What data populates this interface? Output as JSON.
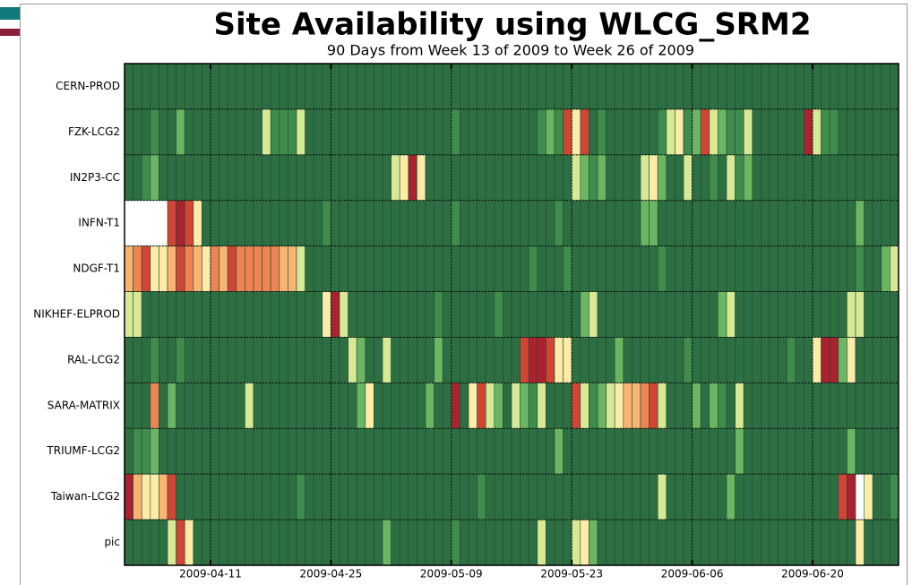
{
  "chart_data": {
    "type": "heatmap",
    "title": "Site Availability using WLCG_SRM2",
    "subtitle": "90 Days from Week 13 of 2009 to Week 26 of 2009",
    "categories": [
      "CERN-PROD",
      "FZK-LCG2",
      "IN2P3-CC",
      "INFN-T1",
      "NDGF-T1",
      "NIKHEF-ELPROD",
      "RAL-LCG2",
      "SARA-MATRIX",
      "TRIUMF-LCG2",
      "Taiwan-LCG2",
      "pic"
    ],
    "x": [
      0,
      1,
      2,
      3,
      4,
      5,
      6,
      7,
      8,
      9,
      10,
      11,
      12,
      13,
      14,
      15,
      16,
      17,
      18,
      19,
      20,
      21,
      22,
      23,
      24,
      25,
      26,
      27,
      28,
      29,
      30,
      31,
      32,
      33,
      34,
      35,
      36,
      37,
      38,
      39,
      40,
      41,
      42,
      43,
      44,
      45,
      46,
      47,
      48,
      49,
      50,
      51,
      52,
      53,
      54,
      55,
      56,
      57,
      58,
      59,
      60,
      61,
      62,
      63,
      64,
      65,
      66,
      67,
      68,
      69,
      70,
      71,
      72,
      73,
      74,
      75,
      76,
      77,
      78,
      79,
      80,
      81,
      82,
      83,
      84,
      85,
      86,
      87,
      88,
      89
    ],
    "xlim": [
      0,
      90
    ],
    "xticks": [
      {
        "value": 10,
        "label": "2009-04-11"
      },
      {
        "value": 24,
        "label": "2009-04-25"
      },
      {
        "value": 38,
        "label": "2009-05-09"
      },
      {
        "value": 52,
        "label": "2009-05-23"
      },
      {
        "value": 66,
        "label": "2009-06-06"
      },
      {
        "value": 80,
        "label": "2009-06-20"
      }
    ],
    "grid": true,
    "colorscale": [
      {
        "value": 15,
        "color": "#a8222f"
      },
      {
        "value": 30,
        "color": "#d04535"
      },
      {
        "value": 45,
        "color": "#ee8454"
      },
      {
        "value": 55,
        "color": "#f8b572"
      },
      {
        "value": 65,
        "color": "#fdeba8"
      },
      {
        "value": 75,
        "color": "#d8e996"
      },
      {
        "value": 88,
        "color": "#6cb563"
      },
      {
        "value": 95,
        "color": "#3f8c4c"
      },
      {
        "value": 100,
        "color": "#2e6e43"
      }
    ],
    "values": [
      [
        100,
        100,
        100,
        100,
        100,
        100,
        100,
        100,
        100,
        100,
        100,
        100,
        100,
        100,
        100,
        100,
        100,
        100,
        100,
        100,
        100,
        100,
        100,
        100,
        100,
        100,
        100,
        100,
        100,
        100,
        100,
        100,
        100,
        100,
        100,
        100,
        100,
        100,
        100,
        100,
        100,
        100,
        100,
        100,
        100,
        100,
        100,
        100,
        100,
        100,
        100,
        100,
        100,
        100,
        100,
        100,
        100,
        100,
        100,
        100,
        100,
        100,
        100,
        100,
        100,
        100,
        100,
        100,
        100,
        100,
        100,
        100,
        100,
        100,
        100,
        100,
        100,
        100,
        100,
        100,
        100,
        100,
        100,
        100,
        100,
        100,
        100,
        100,
        100,
        100
      ],
      [
        100,
        100,
        100,
        95,
        100,
        100,
        88,
        100,
        100,
        100,
        100,
        100,
        100,
        100,
        100,
        100,
        75,
        95,
        95,
        95,
        75,
        100,
        100,
        100,
        100,
        100,
        100,
        100,
        100,
        100,
        100,
        100,
        100,
        100,
        100,
        100,
        100,
        100,
        95,
        100,
        100,
        100,
        100,
        100,
        100,
        100,
        100,
        100,
        95,
        88,
        95,
        30,
        65,
        30,
        100,
        95,
        100,
        100,
        100,
        100,
        100,
        100,
        95,
        75,
        65,
        95,
        88,
        30,
        75,
        88,
        95,
        95,
        75,
        100,
        100,
        100,
        100,
        100,
        100,
        15,
        75,
        95,
        95,
        100,
        100,
        100,
        100,
        100,
        100,
        100
      ],
      [
        100,
        100,
        95,
        88,
        100,
        100,
        100,
        100,
        100,
        100,
        100,
        100,
        100,
        100,
        100,
        100,
        100,
        100,
        100,
        100,
        100,
        100,
        100,
        100,
        100,
        100,
        100,
        100,
        100,
        100,
        100,
        75,
        65,
        15,
        65,
        100,
        100,
        100,
        100,
        100,
        100,
        100,
        100,
        100,
        100,
        100,
        100,
        100,
        100,
        100,
        100,
        100,
        75,
        88,
        95,
        88,
        100,
        100,
        100,
        100,
        75,
        65,
        88,
        100,
        100,
        75,
        100,
        100,
        95,
        100,
        75,
        95,
        88,
        100,
        100,
        100,
        100,
        100,
        100,
        100,
        100,
        100,
        100,
        100,
        100,
        100,
        100,
        100,
        100,
        100
      ],
      [
        null,
        null,
        null,
        null,
        null,
        30,
        15,
        30,
        65,
        100,
        100,
        100,
        100,
        100,
        100,
        100,
        100,
        100,
        100,
        100,
        100,
        100,
        100,
        95,
        100,
        100,
        100,
        100,
        100,
        100,
        100,
        100,
        100,
        100,
        100,
        100,
        100,
        100,
        95,
        100,
        100,
        100,
        100,
        100,
        100,
        100,
        100,
        100,
        100,
        100,
        95,
        100,
        100,
        100,
        100,
        100,
        100,
        100,
        100,
        100,
        88,
        88,
        100,
        100,
        100,
        100,
        100,
        100,
        100,
        100,
        100,
        100,
        100,
        100,
        100,
        100,
        100,
        100,
        100,
        100,
        100,
        100,
        100,
        100,
        100,
        88,
        100,
        100,
        100,
        100
      ],
      [
        55,
        45,
        30,
        65,
        65,
        55,
        30,
        45,
        55,
        65,
        45,
        55,
        30,
        45,
        45,
        45,
        45,
        45,
        55,
        55,
        75,
        100,
        100,
        100,
        100,
        100,
        100,
        100,
        100,
        100,
        100,
        100,
        100,
        100,
        100,
        100,
        100,
        100,
        100,
        100,
        100,
        100,
        100,
        100,
        100,
        100,
        100,
        95,
        100,
        100,
        100,
        95,
        100,
        100,
        100,
        100,
        100,
        100,
        100,
        100,
        100,
        100,
        95,
        100,
        100,
        100,
        100,
        100,
        100,
        100,
        100,
        100,
        100,
        100,
        100,
        100,
        100,
        100,
        100,
        100,
        100,
        100,
        100,
        100,
        100,
        95,
        100,
        100,
        88,
        75
      ],
      [
        75,
        75,
        100,
        100,
        100,
        100,
        100,
        100,
        100,
        100,
        100,
        100,
        100,
        100,
        100,
        100,
        100,
        100,
        100,
        100,
        100,
        100,
        100,
        65,
        15,
        75,
        100,
        100,
        100,
        100,
        100,
        100,
        100,
        100,
        100,
        100,
        95,
        100,
        100,
        100,
        100,
        100,
        100,
        95,
        100,
        100,
        100,
        100,
        100,
        100,
        100,
        100,
        100,
        88,
        75,
        100,
        100,
        100,
        100,
        100,
        100,
        100,
        100,
        100,
        100,
        100,
        100,
        100,
        100,
        88,
        75,
        100,
        100,
        100,
        100,
        100,
        100,
        100,
        100,
        100,
        100,
        100,
        100,
        100,
        75,
        75,
        100,
        100,
        100,
        100
      ],
      [
        100,
        100,
        100,
        95,
        100,
        100,
        95,
        100,
        100,
        100,
        100,
        100,
        100,
        100,
        100,
        100,
        100,
        100,
        100,
        100,
        100,
        100,
        100,
        100,
        100,
        100,
        75,
        88,
        100,
        100,
        75,
        100,
        100,
        100,
        100,
        100,
        88,
        100,
        100,
        100,
        100,
        100,
        100,
        100,
        100,
        100,
        30,
        15,
        15,
        30,
        65,
        65,
        100,
        100,
        100,
        100,
        100,
        88,
        100,
        100,
        100,
        100,
        100,
        100,
        100,
        95,
        100,
        100,
        100,
        100,
        100,
        100,
        100,
        100,
        100,
        100,
        100,
        95,
        100,
        100,
        65,
        15,
        15,
        88,
        65,
        100,
        100,
        100,
        100,
        100
      ],
      [
        100,
        100,
        100,
        45,
        100,
        88,
        100,
        100,
        100,
        100,
        100,
        100,
        100,
        100,
        75,
        100,
        100,
        100,
        100,
        100,
        100,
        100,
        100,
        100,
        100,
        100,
        100,
        88,
        65,
        100,
        100,
        100,
        100,
        100,
        100,
        88,
        100,
        100,
        15,
        100,
        65,
        30,
        75,
        88,
        100,
        75,
        88,
        95,
        75,
        100,
        100,
        100,
        30,
        75,
        95,
        88,
        75,
        65,
        55,
        55,
        45,
        30,
        75,
        100,
        100,
        100,
        88,
        100,
        88,
        95,
        100,
        75,
        100,
        100,
        100,
        100,
        100,
        100,
        100,
        100,
        100,
        100,
        100,
        100,
        100,
        100,
        100,
        100,
        100,
        100
      ],
      [
        100,
        95,
        95,
        88,
        100,
        100,
        100,
        100,
        100,
        100,
        100,
        100,
        100,
        100,
        100,
        100,
        100,
        100,
        100,
        100,
        100,
        100,
        100,
        100,
        100,
        100,
        100,
        100,
        100,
        100,
        100,
        100,
        100,
        100,
        100,
        100,
        100,
        100,
        100,
        100,
        100,
        100,
        100,
        100,
        100,
        100,
        100,
        100,
        100,
        100,
        88,
        100,
        100,
        100,
        100,
        100,
        100,
        100,
        100,
        100,
        100,
        100,
        100,
        100,
        100,
        100,
        100,
        100,
        100,
        100,
        100,
        88,
        100,
        100,
        100,
        100,
        100,
        100,
        100,
        100,
        100,
        100,
        100,
        100,
        88,
        100,
        100,
        100,
        100,
        100
      ],
      [
        15,
        55,
        65,
        65,
        55,
        30,
        100,
        100,
        100,
        100,
        100,
        100,
        100,
        100,
        100,
        100,
        100,
        100,
        100,
        100,
        95,
        100,
        100,
        100,
        100,
        100,
        100,
        100,
        100,
        100,
        100,
        100,
        100,
        100,
        100,
        100,
        100,
        100,
        100,
        100,
        100,
        95,
        100,
        100,
        100,
        100,
        100,
        100,
        100,
        100,
        100,
        100,
        100,
        100,
        100,
        100,
        100,
        100,
        100,
        100,
        100,
        100,
        75,
        100,
        100,
        100,
        100,
        100,
        100,
        100,
        88,
        100,
        100,
        100,
        100,
        100,
        100,
        100,
        100,
        100,
        100,
        100,
        100,
        30,
        15,
        null,
        65,
        100,
        100,
        95
      ],
      [
        100,
        100,
        100,
        100,
        100,
        75,
        30,
        65,
        100,
        100,
        100,
        100,
        100,
        100,
        100,
        100,
        100,
        100,
        100,
        100,
        100,
        100,
        100,
        100,
        100,
        100,
        100,
        100,
        100,
        100,
        88,
        100,
        100,
        100,
        100,
        100,
        100,
        100,
        95,
        100,
        100,
        100,
        100,
        100,
        100,
        100,
        100,
        100,
        75,
        100,
        100,
        100,
        75,
        65,
        88,
        100,
        100,
        100,
        100,
        100,
        100,
        100,
        100,
        100,
        100,
        100,
        100,
        100,
        100,
        100,
        100,
        100,
        100,
        100,
        100,
        100,
        100,
        100,
        100,
        100,
        100,
        100,
        100,
        100,
        100,
        65,
        100,
        100,
        100,
        100
      ]
    ]
  }
}
